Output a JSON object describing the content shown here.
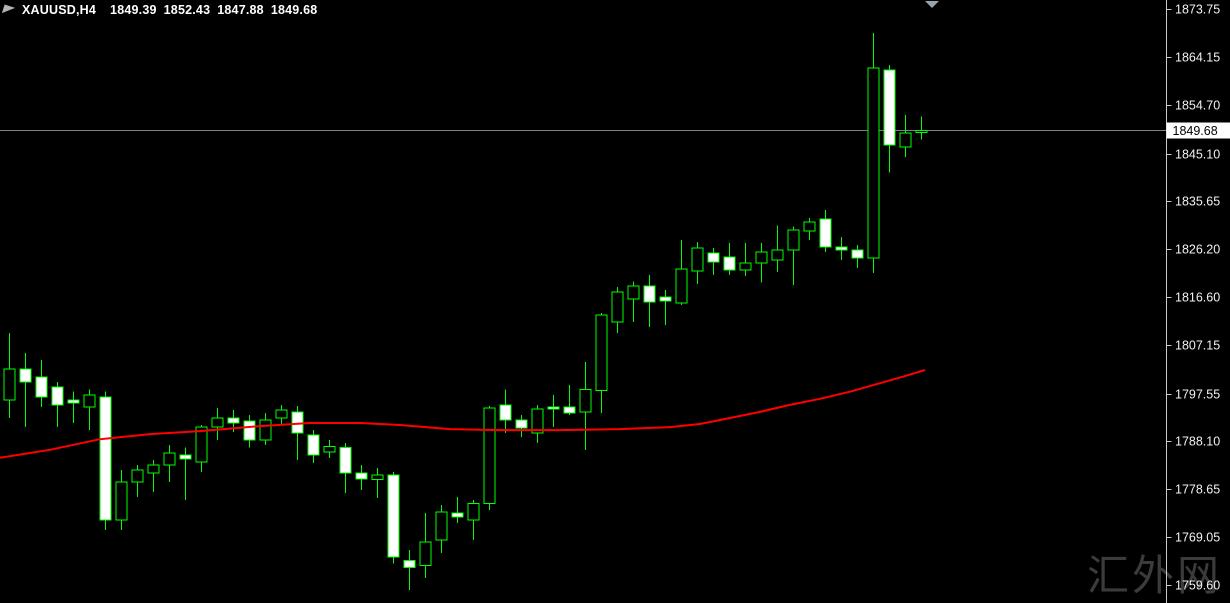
{
  "header": {
    "symbol": "XAUUSD,H4",
    "open": "1849.39",
    "high": "1852.43",
    "low": "1847.88",
    "close": "1849.68"
  },
  "watermark": "汇外网",
  "colors": {
    "background": "#000000",
    "bull_body": "#000000",
    "bear_body": "#FFFFFF",
    "candle_outline": "#00FF00",
    "wick": "#00FF00",
    "ma_line": "#FF0000",
    "bid_line": "#7C828C",
    "axis_line": "#C8C8C8",
    "axis_text": "#F2F2F2",
    "bid_label_bg": "#FFFFFF",
    "bid_label_text": "#000000",
    "header_text": "#FFFFFF",
    "shift_marker": "#98A2AC",
    "watermark": "#3B3B3B"
  },
  "chart_data": {
    "type": "candlestick",
    "title": "XAUUSD,H4",
    "symbol": "XAUUSD",
    "timeframe": "H4",
    "grid": false,
    "legend_position": "none",
    "ylim": [
      1759.6,
      1873.75
    ],
    "y_ticks": [
      "1873.75",
      "1864.15",
      "1854.70",
      "1845.10",
      "1835.65",
      "1826.20",
      "1816.60",
      "1807.15",
      "1797.55",
      "1788.10",
      "1778.65",
      "1769.05",
      "1759.60"
    ],
    "bid": 1849.68,
    "bid_label": "1849.68",
    "candles": [
      [
        1796.3,
        1809.5,
        1792.7,
        1802.4
      ],
      [
        1802.4,
        1805.6,
        1790.9,
        1799.8
      ],
      [
        1800.8,
        1804.2,
        1794.9,
        1796.9
      ],
      [
        1798.8,
        1799.8,
        1790.9,
        1795.3
      ],
      [
        1796.3,
        1797.9,
        1791.7,
        1795.7
      ],
      [
        1794.9,
        1798.3,
        1790.3,
        1797.3
      ],
      [
        1796.9,
        1797.9,
        1770.5,
        1772.5
      ],
      [
        1772.5,
        1782.4,
        1770.5,
        1780.0
      ],
      [
        1780.0,
        1783.4,
        1777.0,
        1782.4
      ],
      [
        1781.8,
        1784.4,
        1778.0,
        1783.4
      ],
      [
        1783.4,
        1787.3,
        1780.0,
        1785.8
      ],
      [
        1785.4,
        1786.8,
        1776.4,
        1784.6
      ],
      [
        1784.0,
        1791.3,
        1782.0,
        1790.9
      ],
      [
        1790.9,
        1794.7,
        1788.3,
        1792.7
      ],
      [
        1792.7,
        1794.3,
        1789.9,
        1791.7
      ],
      [
        1792.1,
        1793.3,
        1786.8,
        1788.3
      ],
      [
        1788.3,
        1793.7,
        1787.3,
        1792.3
      ],
      [
        1792.7,
        1795.3,
        1791.3,
        1794.3
      ],
      [
        1793.9,
        1795.1,
        1784.4,
        1789.7
      ],
      [
        1789.3,
        1790.3,
        1783.8,
        1785.4
      ],
      [
        1786.0,
        1788.3,
        1784.8,
        1787.0
      ],
      [
        1786.8,
        1787.7,
        1777.8,
        1781.8
      ],
      [
        1781.8,
        1783.4,
        1778.4,
        1780.6
      ],
      [
        1780.5,
        1782.8,
        1776.8,
        1781.4
      ],
      [
        1781.4,
        1782.0,
        1763.9,
        1765.1
      ],
      [
        1764.5,
        1766.5,
        1758.6,
        1763.1
      ],
      [
        1763.5,
        1773.9,
        1761.0,
        1768.1
      ],
      [
        1768.5,
        1775.5,
        1765.9,
        1774.1
      ],
      [
        1773.9,
        1777.0,
        1771.9,
        1773.1
      ],
      [
        1772.5,
        1776.4,
        1768.5,
        1775.8
      ],
      [
        1775.8,
        1795.1,
        1774.5,
        1794.7
      ],
      [
        1795.3,
        1798.3,
        1789.7,
        1792.3
      ],
      [
        1792.3,
        1793.3,
        1788.9,
        1790.7
      ],
      [
        1789.7,
        1795.3,
        1787.7,
        1794.5
      ],
      [
        1794.9,
        1797.3,
        1790.9,
        1794.5
      ],
      [
        1794.9,
        1799.2,
        1793.3,
        1793.7
      ],
      [
        1793.9,
        1803.8,
        1786.4,
        1798.3
      ],
      [
        1798.1,
        1813.5,
        1793.7,
        1813.1
      ],
      [
        1811.7,
        1818.7,
        1809.5,
        1817.7
      ],
      [
        1816.3,
        1819.7,
        1811.7,
        1818.9
      ],
      [
        1818.9,
        1821.0,
        1810.7,
        1815.7
      ],
      [
        1816.7,
        1818.1,
        1811.1,
        1815.9
      ],
      [
        1815.5,
        1828.0,
        1815.1,
        1822.2
      ],
      [
        1821.8,
        1827.6,
        1819.3,
        1826.4
      ],
      [
        1825.4,
        1826.4,
        1821.0,
        1823.6
      ],
      [
        1824.6,
        1827.4,
        1821.0,
        1822.0
      ],
      [
        1822.0,
        1827.4,
        1820.8,
        1823.4
      ],
      [
        1823.4,
        1827.4,
        1819.5,
        1825.6
      ],
      [
        1824.0,
        1830.8,
        1821.6,
        1826.0
      ],
      [
        1826.0,
        1830.6,
        1819.1,
        1830.0
      ],
      [
        1829.8,
        1832.3,
        1828.0,
        1831.5
      ],
      [
        1832.1,
        1833.9,
        1825.6,
        1826.6
      ],
      [
        1826.6,
        1828.6,
        1824.0,
        1826.0
      ],
      [
        1826.0,
        1827.0,
        1822.4,
        1824.4
      ],
      [
        1824.4,
        1869.0,
        1821.4,
        1862.1
      ],
      [
        1861.7,
        1862.7,
        1841.3,
        1846.8
      ],
      [
        1846.4,
        1852.7,
        1844.4,
        1849.2
      ],
      [
        1849.39,
        1852.43,
        1847.88,
        1849.68
      ]
    ],
    "ma": {
      "color": "#FF0000",
      "points": [
        {
          "x": 0,
          "price": 1784.8
        },
        {
          "x": 50,
          "price": 1786.4
        },
        {
          "x": 100,
          "price": 1788.5
        },
        {
          "x": 150,
          "price": 1789.5
        },
        {
          "x": 200,
          "price": 1790.1
        },
        {
          "x": 260,
          "price": 1791.1
        },
        {
          "x": 310,
          "price": 1791.7
        },
        {
          "x": 360,
          "price": 1791.7
        },
        {
          "x": 400,
          "price": 1791.3
        },
        {
          "x": 450,
          "price": 1790.5
        },
        {
          "x": 500,
          "price": 1790.3
        },
        {
          "x": 560,
          "price": 1790.3
        },
        {
          "x": 620,
          "price": 1790.5
        },
        {
          "x": 670,
          "price": 1790.9
        },
        {
          "x": 700,
          "price": 1791.5
        },
        {
          "x": 730,
          "price": 1792.7
        },
        {
          "x": 760,
          "price": 1793.9
        },
        {
          "x": 790,
          "price": 1795.3
        },
        {
          "x": 820,
          "price": 1796.5
        },
        {
          "x": 850,
          "price": 1797.9
        },
        {
          "x": 880,
          "price": 1799.6
        },
        {
          "x": 905,
          "price": 1801.0
        },
        {
          "x": 925,
          "price": 1802.2
        }
      ]
    }
  }
}
